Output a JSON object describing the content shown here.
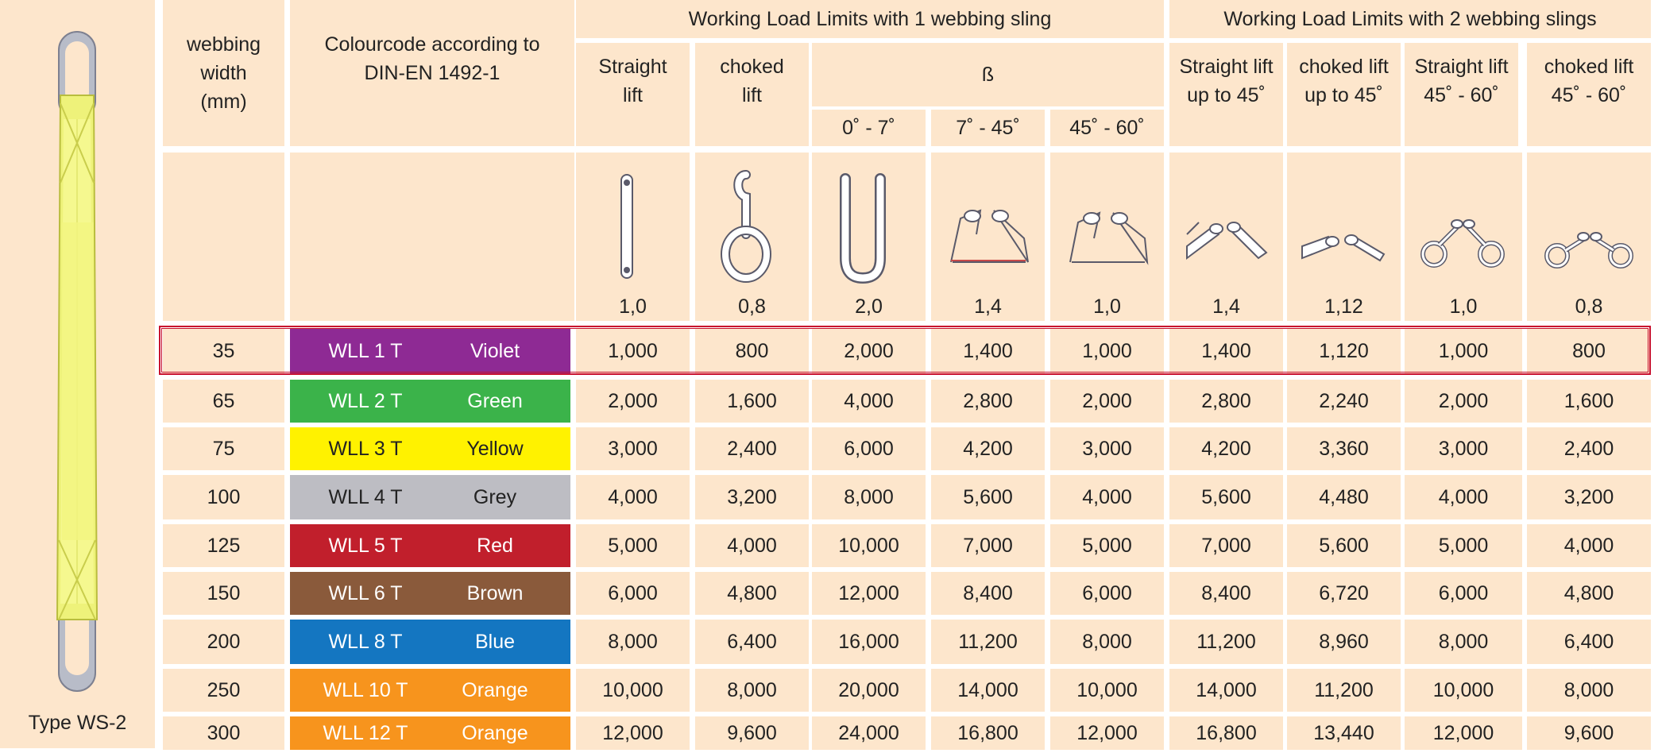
{
  "sling": {
    "caption": "Type WS-2"
  },
  "headers": {
    "width": "webbing width (mm)",
    "colour": "Colourcode according to DIN-EN 1492-1",
    "group1": "Working Load Limits with 1 webbing sling",
    "group2": "Working Load Limits with 2 webbing slings",
    "straight": "Straight lift",
    "choked": "choked lift",
    "beta": "ß",
    "b1": "0˚ - 7˚",
    "b2": "7˚ - 45˚",
    "b3": "45˚ - 60˚",
    "s45": "Straight lift up to 45˚",
    "c45": "choked lift up to 45˚",
    "s4560": "Straight lift 45˚ - 60˚",
    "c4560": "choked lift 45˚ - 60˚"
  },
  "factors": [
    "1,0",
    "0,8",
    "2,0",
    "1,4",
    "1,0",
    "1,4",
    "1,12",
    "1,0",
    "0,8"
  ],
  "icon_names": [
    "straight-lift-icon",
    "choked-lift-icon",
    "basket-0-7-icon",
    "basket-7-45-icon",
    "basket-45-60-icon",
    "two-leg-straight-45-icon",
    "two-leg-choked-45-icon",
    "two-leg-straight-45-60-icon",
    "two-leg-choked-45-60-icon"
  ],
  "rows": [
    {
      "width": "35",
      "wll": "WLL 1 T",
      "colour": "Violet",
      "hex": "#8e2a94",
      "values": [
        "1,000",
        "800",
        "2,000",
        "1,400",
        "1,000",
        "1,400",
        "1,120",
        "1,000",
        "800"
      ]
    },
    {
      "width": "65",
      "wll": "WLL 2 T",
      "colour": "Green",
      "hex": "#3bb34a",
      "values": [
        "2,000",
        "1,600",
        "4,000",
        "2,800",
        "2,000",
        "2,800",
        "2,240",
        "2,000",
        "1,600"
      ]
    },
    {
      "width": "75",
      "wll": "WLL 3 T",
      "colour": "Yellow",
      "hex": "#fff200",
      "values": [
        "3,000",
        "2,400",
        "6,000",
        "4,200",
        "3,000",
        "4,200",
        "3,360",
        "3,000",
        "2,400"
      ]
    },
    {
      "width": "100",
      "wll": "WLL 4 T",
      "colour": "Grey",
      "hex": "#bdbdc3",
      "values": [
        "4,000",
        "3,200",
        "8,000",
        "5,600",
        "4,000",
        "5,600",
        "4,480",
        "4,000",
        "3,200"
      ]
    },
    {
      "width": "125",
      "wll": "WLL 5 T",
      "colour": "Red",
      "hex": "#c11f2c",
      "values": [
        "5,000",
        "4,000",
        "10,000",
        "7,000",
        "5,000",
        "7,000",
        "5,600",
        "5,000",
        "4,000"
      ]
    },
    {
      "width": "150",
      "wll": "WLL 6 T",
      "colour": "Brown",
      "hex": "#8a5a3b",
      "values": [
        "6,000",
        "4,800",
        "12,000",
        "8,400",
        "6,000",
        "8,400",
        "6,720",
        "6,000",
        "4,800"
      ]
    },
    {
      "width": "200",
      "wll": "WLL 8 T",
      "colour": "Blue",
      "hex": "#1476c1",
      "values": [
        "8,000",
        "6,400",
        "16,000",
        "11,200",
        "8,000",
        "11,200",
        "8,960",
        "8,000",
        "6,400"
      ]
    },
    {
      "width": "250",
      "wll": "WLL 10 T",
      "colour": "Orange",
      "hex": "#f7941d",
      "values": [
        "10,000",
        "8,000",
        "20,000",
        "14,000",
        "10,000",
        "14,000",
        "11,200",
        "10,000",
        "8,000"
      ]
    },
    {
      "width": "300",
      "wll": "WLL 12 T",
      "colour": "Orange",
      "hex": "#f7941d",
      "values": [
        "12,000",
        "9,600",
        "24,000",
        "16,800",
        "12,000",
        "16,800",
        "13,440",
        "12,000",
        "9,600"
      ]
    }
  ]
}
